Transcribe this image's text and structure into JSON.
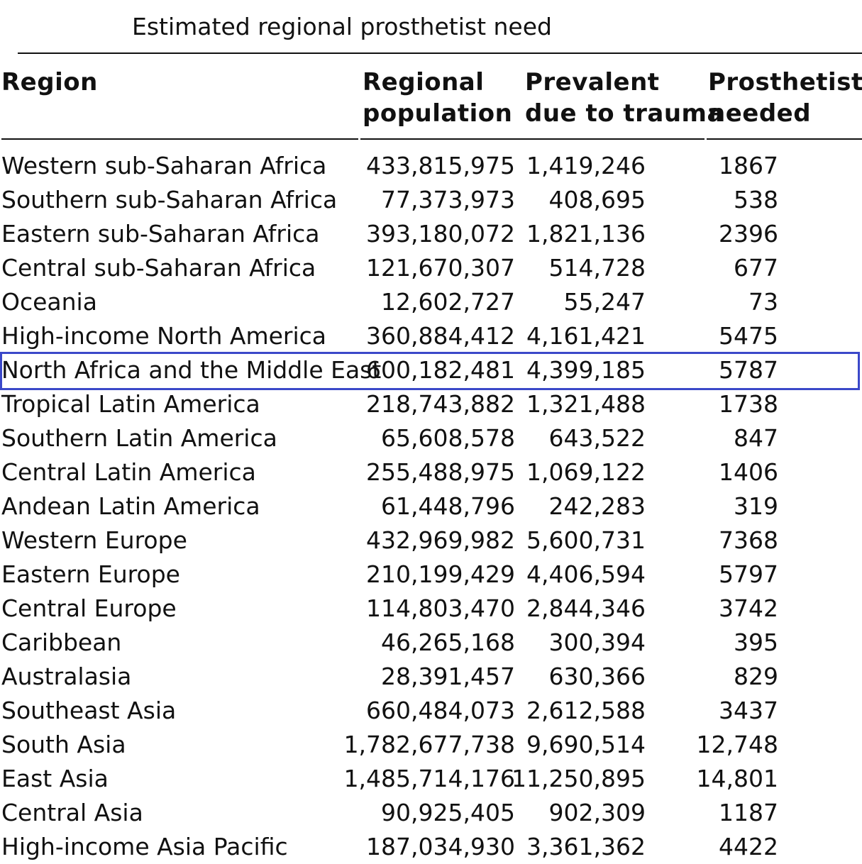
{
  "table": {
    "title": "Estimated regional prosthetist need",
    "headers": {
      "region": "Region",
      "population": [
        "Regional",
        "population"
      ],
      "prevalent": [
        "Prevalent",
        "due to trauma"
      ],
      "needed": [
        "Prosthetists",
        "needed"
      ]
    },
    "highlight_color": "#3b48c9",
    "highlighted_row": "North Africa and the Middle East",
    "rows": [
      {
        "region": "Western sub-Saharan Africa",
        "population": "433,815,975",
        "prevalent": "1,419,246",
        "needed": "1867"
      },
      {
        "region": "Southern sub-Saharan Africa",
        "population": "77,373,973",
        "prevalent": "408,695",
        "needed": "538"
      },
      {
        "region": "Eastern sub-Saharan Africa",
        "population": "393,180,072",
        "prevalent": "1,821,136",
        "needed": "2396"
      },
      {
        "region": "Central sub-Saharan Africa",
        "population": "121,670,307",
        "prevalent": "514,728",
        "needed": "677"
      },
      {
        "region": "Oceania",
        "population": "12,602,727",
        "prevalent": "55,247",
        "needed": "73"
      },
      {
        "region": "High-income North America",
        "population": "360,884,412",
        "prevalent": "4,161,421",
        "needed": "5475"
      },
      {
        "region": "North Africa and the Middle East",
        "population": "600,182,481",
        "prevalent": "4,399,185",
        "needed": "5787"
      },
      {
        "region": "Tropical Latin America",
        "population": "218,743,882",
        "prevalent": "1,321,488",
        "needed": "1738"
      },
      {
        "region": "Southern Latin America",
        "population": "65,608,578",
        "prevalent": "643,522",
        "needed": "847"
      },
      {
        "region": "Central Latin America",
        "population": "255,488,975",
        "prevalent": "1,069,122",
        "needed": "1406"
      },
      {
        "region": "Andean Latin America",
        "population": "61,448,796",
        "prevalent": "242,283",
        "needed": "319"
      },
      {
        "region": "Western Europe",
        "population": "432,969,982",
        "prevalent": "5,600,731",
        "needed": "7368"
      },
      {
        "region": "Eastern Europe",
        "population": "210,199,429",
        "prevalent": "4,406,594",
        "needed": "5797"
      },
      {
        "region": "Central Europe",
        "population": "114,803,470",
        "prevalent": "2,844,346",
        "needed": "3742"
      },
      {
        "region": "Caribbean",
        "population": "46,265,168",
        "prevalent": "300,394",
        "needed": "395"
      },
      {
        "region": "Australasia",
        "population": "28,391,457",
        "prevalent": "630,366",
        "needed": "829"
      },
      {
        "region": "Southeast Asia",
        "population": "660,484,073",
        "prevalent": "2,612,588",
        "needed": "3437"
      },
      {
        "region": "South Asia",
        "population": "1,782,677,738",
        "prevalent": "9,690,514",
        "needed": "12,748"
      },
      {
        "region": "East Asia",
        "population": "1,485,714,176",
        "prevalent": "11,250,895",
        "needed": "14,801"
      },
      {
        "region": "Central Asia",
        "population": "90,925,405",
        "prevalent": "902,309",
        "needed": "1187"
      },
      {
        "region": "High-income Asia Pacific",
        "population": "187,034,930",
        "prevalent": "3,361,362",
        "needed": "4422"
      }
    ]
  }
}
